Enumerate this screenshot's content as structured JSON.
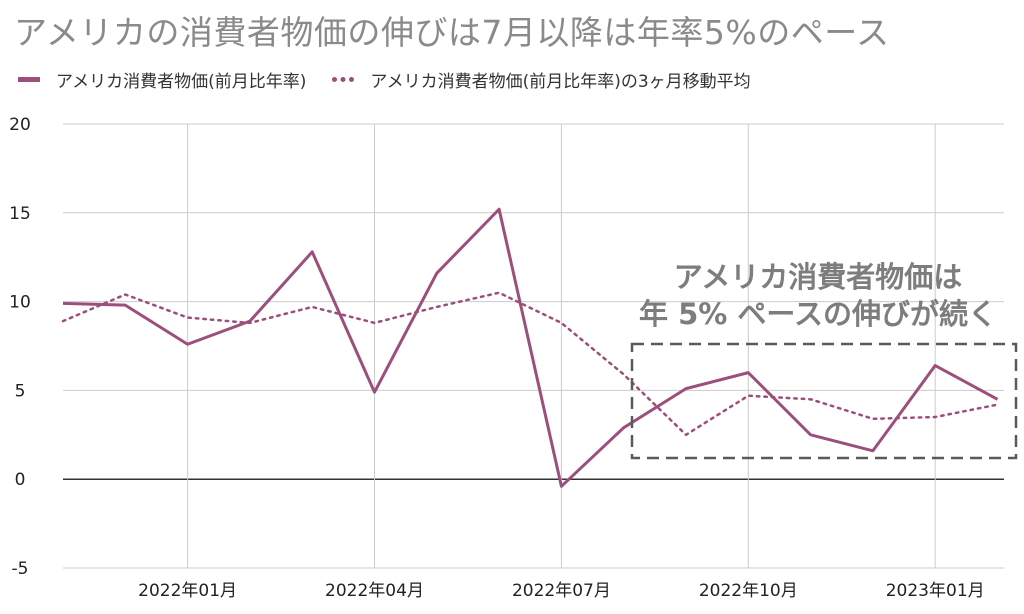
{
  "title": "アメリカの消費者物価の伸びは7月以降は年率5%のペース",
  "legend": {
    "series_1": "アメリカ消費者物価(前月比年率)",
    "series_2": "アメリカ消費者物価(前月比年率)の3ヶ月移動平均"
  },
  "annotation": {
    "line_1": "アメリカ消費者物価は",
    "line_2": "年 5% ペースの伸びが続く"
  },
  "colors": {
    "series": "#9c4f7a",
    "annotation_box": "#5a5a5a",
    "grid": "#cccccc"
  },
  "chart_data": {
    "type": "line",
    "title": "アメリカの消費者物価の伸びは7月以降は年率5%のペース",
    "x": [
      "2021-11",
      "2021-12",
      "2022-01",
      "2022-02",
      "2022-03",
      "2022-04",
      "2022-05",
      "2022-06",
      "2022-07",
      "2022-08",
      "2022-09",
      "2022-10",
      "2022-11",
      "2022-12",
      "2023-01",
      "2023-02"
    ],
    "x_tick_labels": [
      "2022年01月",
      "2022年04月",
      "2022年07月",
      "2022年10月",
      "2023年01月"
    ],
    "x_tick_positions": [
      "2022-01",
      "2022-04",
      "2022-07",
      "2022-10",
      "2023-01"
    ],
    "y_tick_labels": [
      "20",
      "15",
      "10",
      "5",
      "0",
      "-5"
    ],
    "ylim": [
      -5,
      20
    ],
    "grid": true,
    "legend_position": "top-left",
    "series": [
      {
        "name": "アメリカ消費者物価(前月比年率)",
        "style": "solid",
        "values": [
          9.9,
          9.8,
          7.6,
          8.9,
          12.8,
          4.9,
          11.6,
          15.2,
          -0.4,
          2.9,
          5.1,
          6.0,
          2.5,
          1.6,
          6.4,
          4.5
        ]
      },
      {
        "name": "アメリカ消費者物価(前月比年率)の3ヶ月移動平均",
        "style": "dotted",
        "values": [
          8.9,
          10.4,
          9.1,
          8.8,
          9.7,
          8.8,
          9.7,
          10.5,
          8.8,
          5.9,
          2.5,
          4.7,
          4.5,
          3.4,
          3.5,
          4.2
        ]
      }
    ]
  }
}
